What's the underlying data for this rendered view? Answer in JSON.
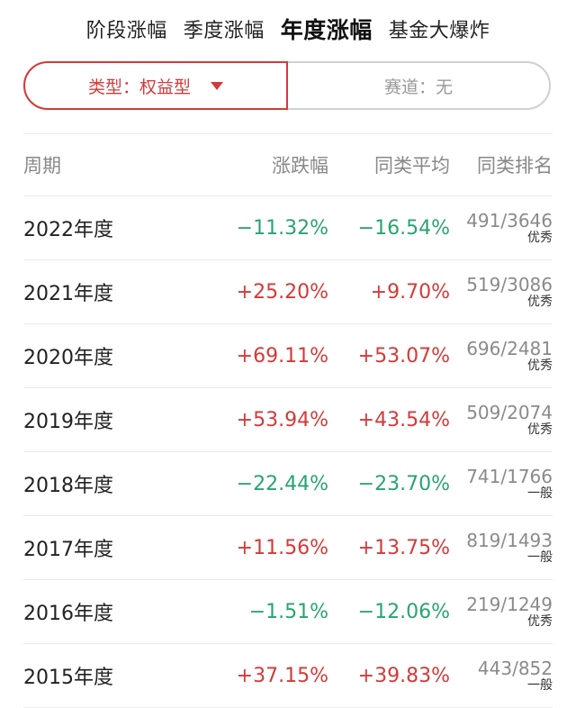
{
  "tabs": [
    {
      "label": "阶段涨幅",
      "active": false
    },
    {
      "label": "季度涨幅",
      "active": false
    },
    {
      "label": "年度涨幅",
      "active": true
    },
    {
      "label": "基金大爆炸",
      "active": false
    }
  ],
  "filters": {
    "type_label": "类型：权益型",
    "track_label": "赛道：无"
  },
  "table": {
    "headers": {
      "period": "周期",
      "change": "涨跌幅",
      "avg": "同类平均",
      "rank": "同类排名"
    },
    "rows": [
      {
        "period": "2022年度",
        "change": "−11.32%",
        "avg": "−16.54%",
        "rank": "491/3646",
        "tag": "优秀",
        "change_dir": "down",
        "avg_dir": "down"
      },
      {
        "period": "2021年度",
        "change": "+25.20%",
        "avg": "+9.70%",
        "rank": "519/3086",
        "tag": "优秀",
        "change_dir": "up",
        "avg_dir": "up"
      },
      {
        "period": "2020年度",
        "change": "+69.11%",
        "avg": "+53.07%",
        "rank": "696/2481",
        "tag": "优秀",
        "change_dir": "up",
        "avg_dir": "up"
      },
      {
        "period": "2019年度",
        "change": "+53.94%",
        "avg": "+43.54%",
        "rank": "509/2074",
        "tag": "优秀",
        "change_dir": "up",
        "avg_dir": "up"
      },
      {
        "period": "2018年度",
        "change": "−22.44%",
        "avg": "−23.70%",
        "rank": "741/1766",
        "tag": "一般",
        "change_dir": "down",
        "avg_dir": "down"
      },
      {
        "period": "2017年度",
        "change": "+11.56%",
        "avg": "+13.75%",
        "rank": "819/1493",
        "tag": "一般",
        "change_dir": "up",
        "avg_dir": "up"
      },
      {
        "period": "2016年度",
        "change": "−1.51%",
        "avg": "−12.06%",
        "rank": "219/1249",
        "tag": "优秀",
        "change_dir": "down",
        "avg_dir": "down"
      },
      {
        "period": "2015年度",
        "change": "+37.15%",
        "avg": "+39.83%",
        "rank": "443/852",
        "tag": "一般",
        "change_dir": "up",
        "avg_dir": "up"
      }
    ]
  },
  "colors": {
    "up": "#d33a3a",
    "down": "#2aa36e",
    "accent": "#d33a3a"
  },
  "icons": {
    "type_dropdown": "caret-down-icon"
  }
}
